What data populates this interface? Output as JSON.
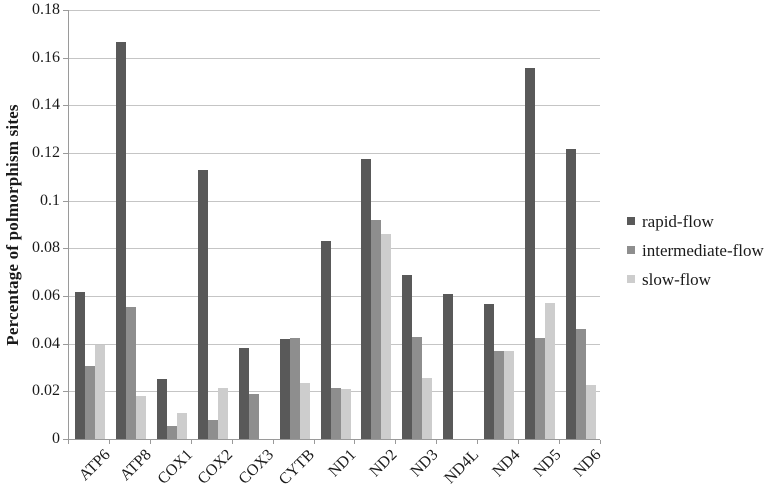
{
  "chart_data": {
    "type": "bar",
    "title": "",
    "xlabel": "",
    "ylabel": "Percentage of polmorphism sites",
    "ylim": [
      0,
      0.18
    ],
    "grid": true,
    "legend_position": "right",
    "yticks": [
      {
        "value": 0,
        "label": "0"
      },
      {
        "value": 0.02,
        "label": "0.02"
      },
      {
        "value": 0.04,
        "label": "0.04"
      },
      {
        "value": 0.06,
        "label": "0.06"
      },
      {
        "value": 0.08,
        "label": "0.08"
      },
      {
        "value": 0.1,
        "label": "0.1"
      },
      {
        "value": 0.12,
        "label": "0.12"
      },
      {
        "value": 0.14,
        "label": "0.14"
      },
      {
        "value": 0.16,
        "label": "0.16"
      },
      {
        "value": 0.18,
        "label": "0.18"
      }
    ],
    "categories": [
      "ATP6",
      "ATP8",
      "COX1",
      "COX2",
      "COX3",
      "CYTB",
      "ND1",
      "ND2",
      "ND3",
      "ND4L",
      "ND4",
      "ND5",
      "ND6"
    ],
    "series": [
      {
        "name": "rapid-flow",
        "color": "#595959",
        "values": [
          0.0615,
          0.1665,
          0.025,
          0.113,
          0.038,
          0.042,
          0.083,
          0.1175,
          0.069,
          0.061,
          0.0565,
          0.1555,
          0.1215
        ]
      },
      {
        "name": "intermediate-flow",
        "color": "#8e8e8e",
        "values": [
          0.0305,
          0.0555,
          0.0055,
          0.008,
          0.019,
          0.0425,
          0.0215,
          0.092,
          0.043,
          0,
          0.037,
          0.0425,
          0.046
        ]
      },
      {
        "name": "slow-flow",
        "color": "#cdcdcd",
        "values": [
          0.0395,
          0.018,
          0.011,
          0.0215,
          0,
          0.0235,
          0.021,
          0.086,
          0.0255,
          0,
          0.037,
          0.057,
          0.0225
        ]
      }
    ]
  }
}
